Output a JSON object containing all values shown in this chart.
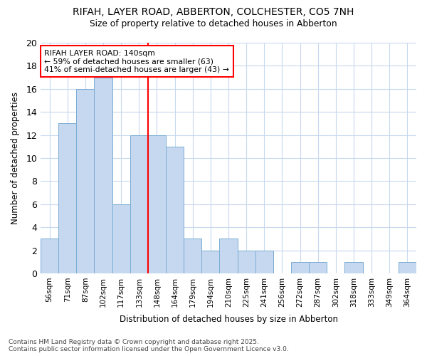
{
  "title1": "RIFAH, LAYER ROAD, ABBERTON, COLCHESTER, CO5 7NH",
  "title2": "Size of property relative to detached houses in Abberton",
  "xlabel": "Distribution of detached houses by size in Abberton",
  "ylabel": "Number of detached properties",
  "bins": [
    "56sqm",
    "71sqm",
    "87sqm",
    "102sqm",
    "117sqm",
    "133sqm",
    "148sqm",
    "164sqm",
    "179sqm",
    "194sqm",
    "210sqm",
    "225sqm",
    "241sqm",
    "256sqm",
    "272sqm",
    "287sqm",
    "302sqm",
    "318sqm",
    "333sqm",
    "349sqm",
    "364sqm"
  ],
  "values": [
    3,
    13,
    16,
    17,
    6,
    12,
    12,
    11,
    3,
    2,
    3,
    2,
    2,
    0,
    1,
    1,
    0,
    1,
    0,
    0,
    1
  ],
  "bar_color": "#c5d8f0",
  "bar_edge_color": "#7aadd4",
  "vline_x": 5.5,
  "vline_color": "red",
  "annotation_text": "RIFAH LAYER ROAD: 140sqm\n← 59% of detached houses are smaller (63)\n41% of semi-detached houses are larger (43) →",
  "annotation_box_color": "white",
  "annotation_box_edge": "red",
  "ylim": [
    0,
    20
  ],
  "yticks": [
    0,
    2,
    4,
    6,
    8,
    10,
    12,
    14,
    16,
    18,
    20
  ],
  "footer": "Contains HM Land Registry data © Crown copyright and database right 2025.\nContains public sector information licensed under the Open Government Licence v3.0.",
  "background_color": "#ffffff",
  "grid_color": "#c8d8ee"
}
